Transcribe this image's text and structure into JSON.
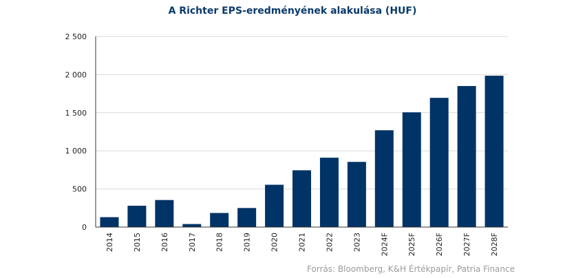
{
  "chart_data": {
    "type": "bar",
    "title": "A Richter EPS-eredményének  alakulása (HUF)",
    "xlabel": "",
    "ylabel": "",
    "categories": [
      "2014",
      "2015",
      "2016",
      "2017",
      "2018",
      "2019",
      "2020",
      "2021",
      "2022",
      "2023",
      "2024F",
      "2025F",
      "2026F",
      "2027F",
      "2028F"
    ],
    "values": [
      130,
      280,
      355,
      40,
      185,
      250,
      555,
      745,
      910,
      855,
      1270,
      1505,
      1695,
      1850,
      1985
    ],
    "ylim": [
      0,
      2500
    ],
    "yticks": [
      0,
      500,
      1000,
      1500,
      2000,
      2500
    ],
    "ytick_labels": [
      "0",
      "500",
      "1 000",
      "1 500",
      "2 000",
      "2 500"
    ],
    "grid": true,
    "bar_color": "#003366"
  },
  "source": "Forrás: Bloomberg, K&H Értékpapír, Patria Finance"
}
